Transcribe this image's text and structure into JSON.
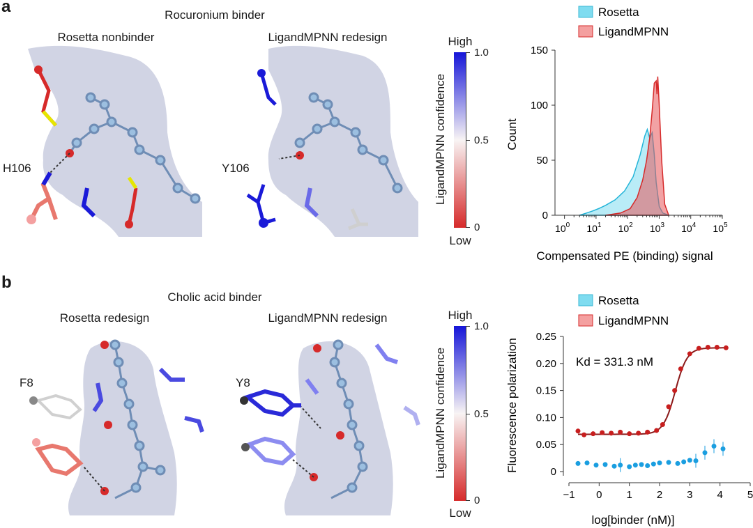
{
  "panel_a": {
    "letter": "a",
    "title": "Rocuronium binder",
    "left_label": "Rosetta nonbinder",
    "right_label": "LigandMPNN redesign",
    "left_residue": "H106",
    "right_residue": "Y106",
    "colorbar": {
      "top": "High",
      "bottom": "Low",
      "title": "LigandMPNN confidence",
      "ticks": [
        "1.0",
        "0.5",
        "0"
      ]
    }
  },
  "panel_b": {
    "letter": "b",
    "title": "Cholic acid binder",
    "left_label": "Rosetta redesign",
    "right_label": "LigandMPNN redesign",
    "left_residue": "F8",
    "right_residue": "Y8",
    "colorbar": {
      "top": "High",
      "bottom": "Low",
      "title": "LigandMPNN confidence",
      "ticks": [
        "1.0",
        "0.5",
        "0"
      ]
    }
  },
  "colors": {
    "rosetta": "#7fdcf0",
    "ligandmpnn": "#e8555a",
    "high": "#1515d8",
    "low": "#d62a2a",
    "surface": "#c9ccdf",
    "fp_rosetta": "#1a9ee0",
    "fp_ligandmpnn": "#c81e1e"
  },
  "chart_data": [
    {
      "type": "area",
      "legend": [
        "Rosetta",
        "LigandMPNN"
      ],
      "legend_position": "top",
      "xlabel": "Compensated PE (binding) signal",
      "ylabel": "Count",
      "x_scale": "log",
      "xlim": [
        0.5,
        100000
      ],
      "ylim": [
        0,
        150
      ],
      "y_ticks": [
        "0",
        "50",
        "100",
        "150"
      ],
      "x_tick_bases": [
        "10",
        "10",
        "10",
        "10",
        "10",
        "10"
      ],
      "x_tick_exps": [
        "0",
        "1",
        "2",
        "3",
        "4",
        "5"
      ],
      "series": [
        {
          "name": "Rosetta",
          "x": [
            3,
            5,
            8,
            12,
            20,
            40,
            80,
            150,
            250,
            350,
            420,
            500,
            600,
            700,
            800,
            1000,
            1300,
            2000
          ],
          "values": [
            0,
            2,
            4,
            6,
            9,
            14,
            22,
            35,
            55,
            72,
            78,
            70,
            75,
            55,
            30,
            8,
            2,
            0
          ]
        },
        {
          "name": "LigandMPNN",
          "x": [
            20,
            60,
            120,
            200,
            300,
            400,
            500,
            600,
            700,
            800,
            850,
            900,
            1000,
            1200,
            1500,
            2000
          ],
          "values": [
            0,
            2,
            6,
            16,
            32,
            50,
            70,
            95,
            120,
            122,
            110,
            126,
            100,
            50,
            10,
            0
          ]
        }
      ]
    },
    {
      "type": "scatter",
      "legend": [
        "Rosetta",
        "LigandMPNN"
      ],
      "legend_position": "top",
      "annotation": "Kd = 331.3 nM",
      "xlabel": "log[binder (nM)]",
      "ylabel": "Fluorescence polarization",
      "xlim": [
        -1,
        5
      ],
      "ylim": [
        0,
        0.25
      ],
      "x_ticks": [
        "−1",
        "0",
        "1",
        "2",
        "3",
        "4",
        "5"
      ],
      "y_ticks": [
        "0",
        "0.05",
        "0.10",
        "0.15",
        "0.20",
        "0.25"
      ],
      "series": [
        {
          "name": "Rosetta",
          "x": [
            -0.7,
            -0.4,
            -0.1,
            0.2,
            0.5,
            0.7,
            1.0,
            1.2,
            1.4,
            1.6,
            1.8,
            2.0,
            2.3,
            2.6,
            2.8,
            3.0,
            3.2,
            3.5,
            3.8,
            4.1
          ],
          "values": [
            0.015,
            0.016,
            0.012,
            0.013,
            0.01,
            0.012,
            0.009,
            0.012,
            0.013,
            0.011,
            0.014,
            0.016,
            0.017,
            0.015,
            0.018,
            0.021,
            0.02,
            0.035,
            0.047,
            0.042
          ]
        },
        {
          "name": "LigandMPNN",
          "x": [
            -0.7,
            -0.5,
            -0.2,
            0.1,
            0.4,
            0.7,
            1.0,
            1.3,
            1.6,
            1.9,
            2.1,
            2.3,
            2.5,
            2.7,
            3.0,
            3.3,
            3.6,
            3.9,
            4.2
          ],
          "values": [
            0.075,
            0.068,
            0.07,
            0.072,
            0.071,
            0.073,
            0.07,
            0.071,
            0.073,
            0.076,
            0.087,
            0.12,
            0.15,
            0.19,
            0.218,
            0.228,
            0.23,
            0.23,
            0.229
          ]
        },
        {
          "name": "LigandMPNN fit",
          "x_fit_from": -0.7,
          "x_fit_to": 4.2,
          "bottom": 0.069,
          "top": 0.229,
          "log_kd": 2.52,
          "hill": 2.2
        }
      ]
    }
  ]
}
